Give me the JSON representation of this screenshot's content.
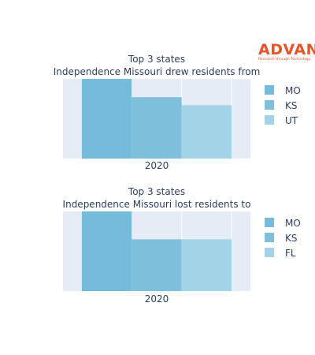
{
  "brand": {
    "name": "ADVAN",
    "tagline": "Research through Technology",
    "color": "#e8542a"
  },
  "colors": {
    "plot_background": "#e5ecf6",
    "grid": "#ffffff",
    "text": "#2a3f5f"
  },
  "chart_data": [
    {
      "type": "bar",
      "title_line1": "Top 3 states",
      "title_line2": "Independence Missouri drew residents from",
      "categories": [
        "2020"
      ],
      "series": [
        {
          "name": "MO",
          "values": [
            100
          ],
          "color": "#74bcd9"
        },
        {
          "name": "KS",
          "values": [
            77
          ],
          "color": "#7ec0db"
        },
        {
          "name": "UT",
          "values": [
            67
          ],
          "color": "#a3d3e6"
        }
      ],
      "ylim": [
        0,
        100
      ],
      "grid": true,
      "legend": "right"
    },
    {
      "type": "bar",
      "title_line1": "Top 3 states",
      "title_line2": "Independence Missouri lost residents to",
      "categories": [
        "2020"
      ],
      "series": [
        {
          "name": "MO",
          "values": [
            100
          ],
          "color": "#74bcd9"
        },
        {
          "name": "KS",
          "values": [
            65
          ],
          "color": "#7ec0db"
        },
        {
          "name": "FL",
          "values": [
            65
          ],
          "color": "#a3d3e6"
        }
      ],
      "ylim": [
        0,
        100
      ],
      "grid": true,
      "legend": "right"
    }
  ]
}
